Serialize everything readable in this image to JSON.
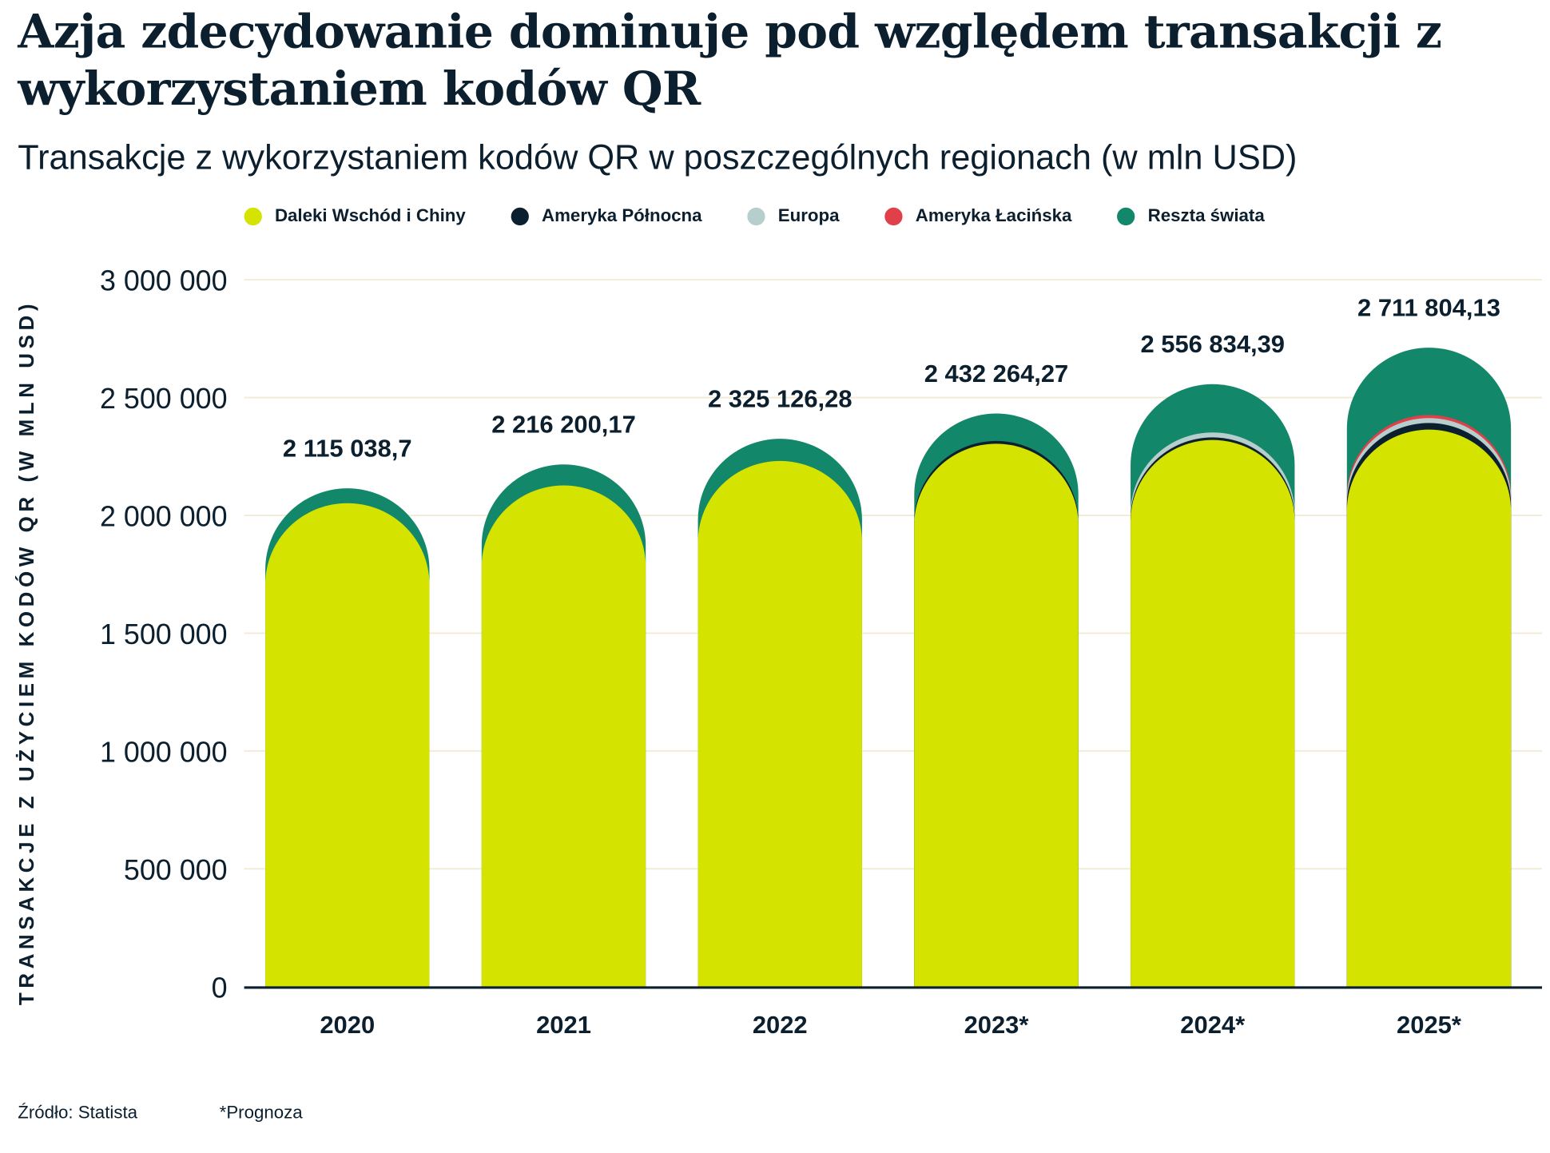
{
  "title": "Azja zdecydowanie dominuje pod względem transakcji z wykorzystaniem kodów QR",
  "subtitle": "Transakcje z wykorzystaniem kodów QR w poszczególnych regionach (w mln USD)",
  "footer": {
    "source": "Źródło: Statista",
    "note": "*Prognoza"
  },
  "chart_data": {
    "type": "bar",
    "stacked": true,
    "title": "Azja zdecydowanie dominuje pod względem transakcji z wykorzystaniem kodów QR",
    "subtitle": "Transakcje z wykorzystaniem kodów QR w poszczególnych regionach (w mln USD)",
    "ylabel": "TRANSAKCJE Z UŻYCIEM KODÓW QR (W MLN USD)",
    "xlabel": "",
    "ylim": [
      0,
      3000000
    ],
    "yticks": [
      0,
      500000,
      1000000,
      1500000,
      2000000,
      2500000,
      3000000
    ],
    "ytick_labels": [
      "0",
      "500 000",
      "1 000 000",
      "1 500 000",
      "2 000 000",
      "2 500 000",
      "3 000 000"
    ],
    "grid": true,
    "legend_position": "top",
    "categories": [
      "2020",
      "2021",
      "2022",
      "2023*",
      "2024*",
      "2025*"
    ],
    "totals": [
      2115038.7,
      2216200.17,
      2325126.28,
      2432264.27,
      2556834.39,
      2711804.13
    ],
    "total_labels": [
      "2 115 038,7",
      "2 216 200,17",
      "2 325 126,28",
      "2 432 264,27",
      "2 556 834,39",
      "2 711 804,13"
    ],
    "series": [
      {
        "name": "Daleki Wschód i Chiny",
        "color": "#d4e300",
        "values": [
          2052000,
          2127000,
          2231000,
          2304000,
          2320000,
          2364000
        ]
      },
      {
        "name": "Ameryka Północna",
        "color": "#0b1f2e",
        "values": [
          0,
          0,
          0,
          12000,
          11000,
          28000
        ]
      },
      {
        "name": "Europa",
        "color": "#b6cfcc",
        "values": [
          0,
          0,
          0,
          0,
          21000,
          21000
        ]
      },
      {
        "name": "Ameryka Łacińska",
        "color": "#e0404a",
        "values": [
          0,
          0,
          0,
          0,
          0,
          13000
        ]
      },
      {
        "name": "Reszta świata",
        "color": "#12876a",
        "values": [
          63039,
          89200,
          94126,
          116264,
          204834,
          285804
        ]
      }
    ]
  }
}
